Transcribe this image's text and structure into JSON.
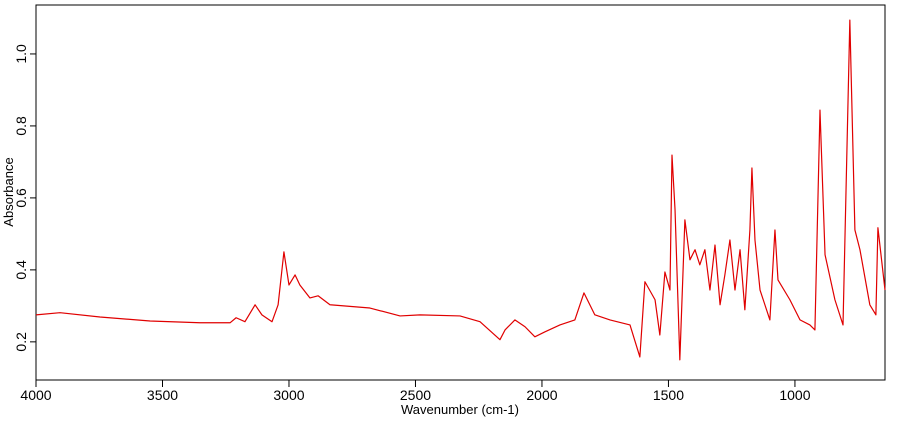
{
  "chart_data": {
    "type": "line",
    "xlabel": "Wavenumber (cm-1)",
    "ylabel": "Absorbance",
    "xlim": [
      4000,
      644
    ],
    "ylim": [
      0.094,
      1.136
    ],
    "xticks": [
      4000,
      3500,
      3000,
      2500,
      2000,
      1500,
      1000
    ],
    "yticks": [
      0.2,
      0.4,
      0.6,
      0.8,
      {
        "value": 1,
        "label": "1.0"
      }
    ],
    "x": [
      4000,
      3905,
      3747,
      3549,
      3352,
      3233,
      3209,
      3174,
      3134,
      3107,
      3067,
      3043,
      3020,
      3000,
      2976,
      2957,
      2917,
      2885,
      2838,
      2680,
      2561,
      2482,
      2324,
      2245,
      2166,
      2146,
      2107,
      2067,
      2028,
      1988,
      1929,
      1870,
      1834,
      1791,
      1731,
      1652,
      1613,
      1593,
      1553,
      1534,
      1514,
      1494,
      1486,
      1474,
      1455,
      1435,
      1415,
      1395,
      1376,
      1356,
      1336,
      1316,
      1296,
      1277,
      1257,
      1237,
      1217,
      1198,
      1178,
      1170,
      1158,
      1138,
      1099,
      1079,
      1067,
      1020,
      980,
      941,
      921,
      901,
      881,
      842,
      810,
      783,
      763,
      743,
      704,
      680,
      672,
      644
    ],
    "series": [
      {
        "color": "#e00000",
        "values": [
          0.275,
          0.281,
          0.269,
          0.258,
          0.253,
          0.253,
          0.267,
          0.256,
          0.303,
          0.275,
          0.256,
          0.303,
          0.45,
          0.358,
          0.386,
          0.358,
          0.322,
          0.328,
          0.303,
          0.294,
          0.272,
          0.275,
          0.272,
          0.256,
          0.206,
          0.233,
          0.261,
          0.242,
          0.214,
          0.228,
          0.247,
          0.261,
          0.336,
          0.275,
          0.261,
          0.247,
          0.158,
          0.367,
          0.317,
          0.219,
          0.394,
          0.344,
          0.719,
          0.567,
          0.15,
          0.539,
          0.428,
          0.456,
          0.414,
          0.456,
          0.344,
          0.469,
          0.303,
          0.386,
          0.483,
          0.344,
          0.456,
          0.289,
          0.511,
          0.683,
          0.483,
          0.344,
          0.261,
          0.511,
          0.372,
          0.317,
          0.261,
          0.247,
          0.233,
          0.844,
          0.442,
          0.317,
          0.247,
          1.094,
          0.511,
          0.456,
          0.303,
          0.275,
          0.517,
          0.344
        ]
      }
    ]
  }
}
